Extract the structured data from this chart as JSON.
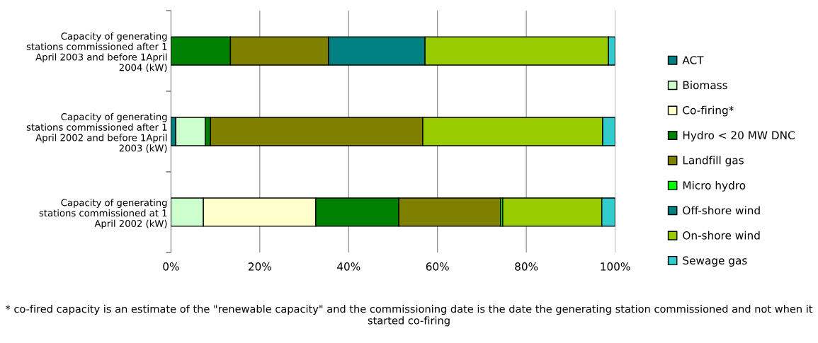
{
  "chart_data": {
    "type": "bar",
    "orientation": "horizontal",
    "stacked": true,
    "categories": [
      "Capacity of generating\nstations commissioned after 1\nApril 2003 and before 1April\n2004 (kW)",
      "Capacity of generating\nstations commissioned after 1\nApril 2002 and before 1April\n2003 (kW)",
      "Capacity of generating\nstations commissioned at 1\nApril 2002 (kW)"
    ],
    "series": [
      {
        "name": "ACT",
        "color": "#008080",
        "values": [
          null,
          1.1,
          null
        ]
      },
      {
        "name": "Biomass",
        "color": "#ccffcc",
        "values": [
          null,
          6.6,
          7.3
        ]
      },
      {
        "name": "Co-firing*",
        "color": "#ffffcc",
        "values": [
          null,
          null,
          25.3
        ]
      },
      {
        "name": "Hydro < 20 MW DNC",
        "color": "#008000",
        "values": [
          13.4,
          1.2,
          18.7
        ]
      },
      {
        "name": "Landfill gas",
        "color": "#808000",
        "values": [
          22.1,
          47.8,
          22.9
        ]
      },
      {
        "name": "Micro hydro",
        "color": "#00ff00",
        "values": [
          null,
          null,
          0.5
        ]
      },
      {
        "name": "Off-shore wind",
        "color": "#008080",
        "values": [
          21.7,
          null,
          null
        ]
      },
      {
        "name": "On-shore wind",
        "color": "#99cc00",
        "values": [
          41.3,
          40.5,
          22.3
        ]
      },
      {
        "name": "Sewage gas",
        "color": "#33cccc",
        "values": [
          1.5,
          2.8,
          3.0
        ]
      }
    ],
    "xlim": [
      0,
      100
    ],
    "xticks": [
      {
        "value": 0,
        "label": "0%"
      },
      {
        "value": 20,
        "label": "20%"
      },
      {
        "value": 40,
        "label": "40%"
      },
      {
        "value": 60,
        "label": "60%"
      },
      {
        "value": 80,
        "label": "80%"
      },
      {
        "value": 100,
        "label": "100%"
      }
    ],
    "grid": "x",
    "legend": "right",
    "annotations": [
      "* co-fired capacity is an estimate of the \"renewable capacity\" and the commissioning date is the date the generating station commissioned and not when it started co-firing"
    ]
  }
}
